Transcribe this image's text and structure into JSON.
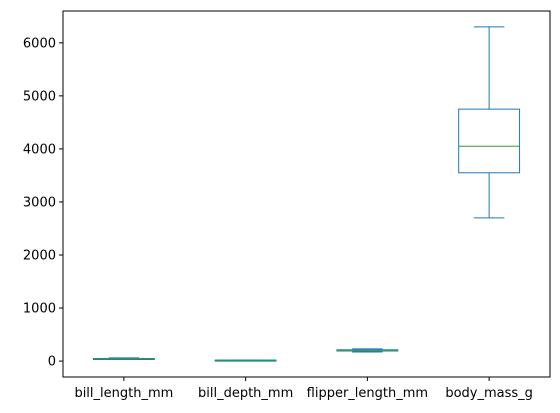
{
  "chart_data": {
    "type": "box",
    "title": "",
    "xlabel": "",
    "ylabel": "",
    "ylim": [
      -300,
      6600
    ],
    "yticks": [
      0,
      1000,
      2000,
      3000,
      4000,
      5000,
      6000
    ],
    "ytick_labels": [
      "0",
      "1000",
      "2000",
      "3000",
      "4000",
      "5000",
      "6000"
    ],
    "categories": [
      "bill_length_mm",
      "bill_depth_mm",
      "flipper_length_mm",
      "body_mass_g"
    ],
    "boxes": [
      {
        "name": "bill_length_mm",
        "whisker_low": 32.1,
        "q1": 39.2,
        "median": 44.5,
        "q3": 48.5,
        "whisker_high": 59.6
      },
      {
        "name": "bill_depth_mm",
        "whisker_low": 13.1,
        "q1": 15.6,
        "median": 17.3,
        "q3": 18.7,
        "whisker_high": 21.5
      },
      {
        "name": "flipper_length_mm",
        "whisker_low": 172,
        "q1": 190,
        "median": 197,
        "q3": 213,
        "whisker_high": 231
      },
      {
        "name": "body_mass_g",
        "whisker_low": 2700,
        "q1": 3550,
        "median": 4050,
        "q3": 4750,
        "whisker_high": 6300
      }
    ],
    "grid": false,
    "legend": false,
    "colors": {
      "box": "#1f77b4",
      "median": "#2ca02c",
      "axis": "#000000"
    }
  }
}
